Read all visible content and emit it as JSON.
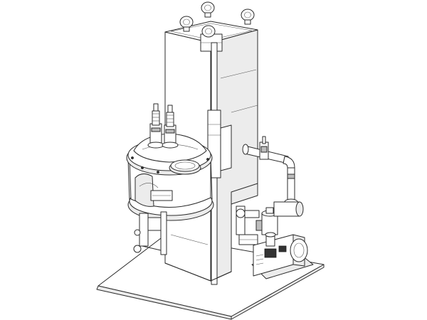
{
  "drawing": {
    "style": "isometric line drawing",
    "line_color": "#2b2b2b",
    "background": "#ffffff",
    "parts": [
      "base-plate",
      "tower-column",
      "lifting-eyes",
      "guide-rod",
      "chamber",
      "chamber-lid",
      "viewport",
      "feedthroughs",
      "manifold-pipe",
      "vacuum-pump",
      "gate-valve",
      "support-bracket"
    ]
  }
}
